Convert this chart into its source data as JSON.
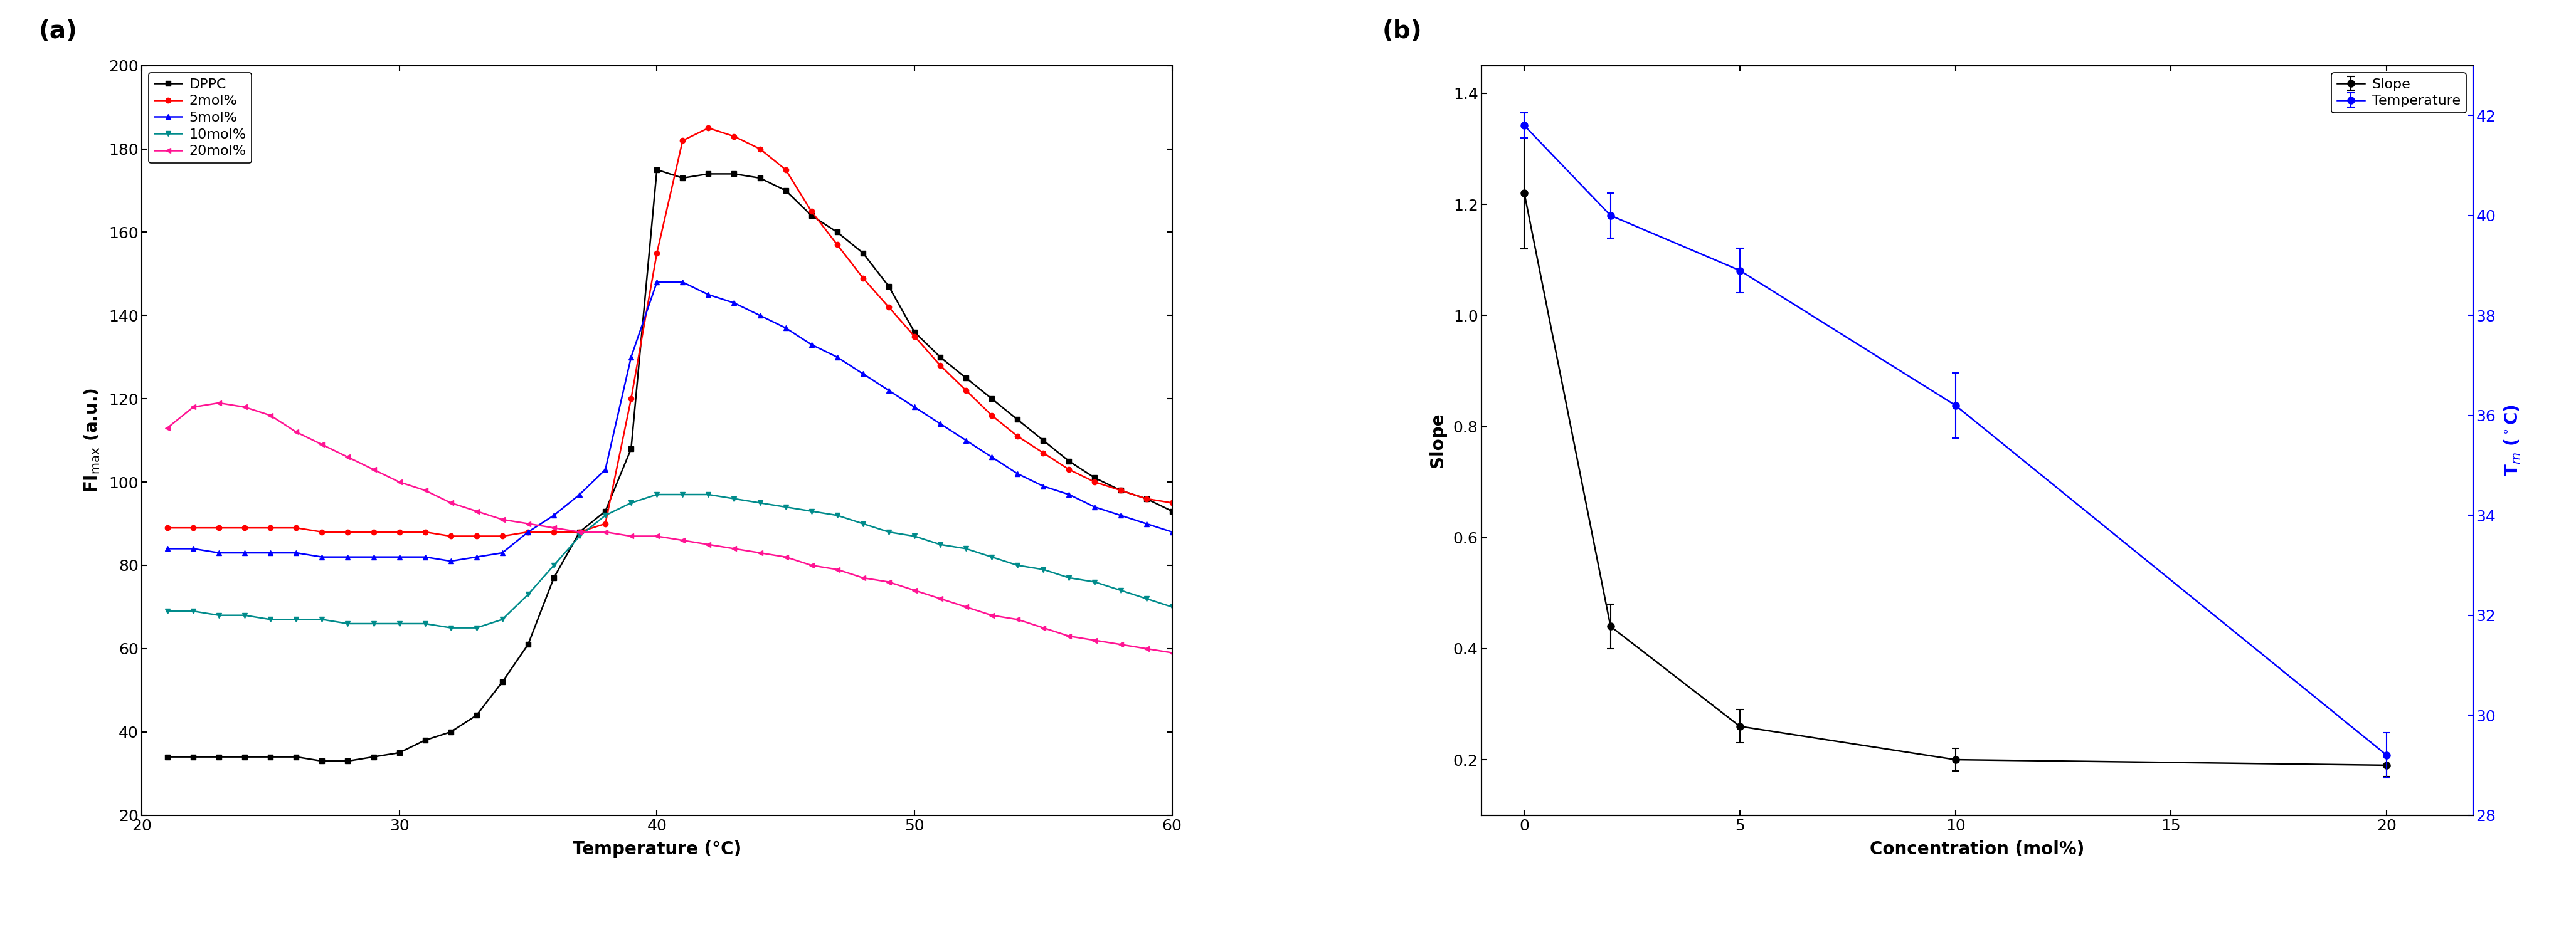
{
  "panel_a": {
    "xlabel": "Temperature (°C)",
    "ylabel": "FI$_{max}$ (a.u.)",
    "xlim": [
      20,
      60
    ],
    "ylim": [
      20,
      200
    ],
    "yticks": [
      20,
      40,
      60,
      80,
      100,
      120,
      140,
      160,
      180,
      200
    ],
    "xticks": [
      20,
      30,
      40,
      50,
      60
    ],
    "series": {
      "DPPC": {
        "color": "#000000",
        "marker": "s",
        "x": [
          21,
          22,
          23,
          24,
          25,
          26,
          27,
          28,
          29,
          30,
          31,
          32,
          33,
          34,
          35,
          36,
          37,
          38,
          39,
          40,
          41,
          42,
          43,
          44,
          45,
          46,
          47,
          48,
          49,
          50,
          51,
          52,
          53,
          54,
          55,
          56,
          57,
          58,
          59,
          60
        ],
        "y": [
          34,
          34,
          34,
          34,
          34,
          34,
          33,
          33,
          34,
          35,
          38,
          40,
          44,
          52,
          61,
          77,
          88,
          93,
          108,
          175,
          173,
          174,
          174,
          173,
          170,
          164,
          160,
          155,
          147,
          136,
          130,
          125,
          120,
          115,
          110,
          105,
          101,
          98,
          96,
          93
        ]
      },
      "2mol%": {
        "color": "#ff0000",
        "marker": "o",
        "x": [
          21,
          22,
          23,
          24,
          25,
          26,
          27,
          28,
          29,
          30,
          31,
          32,
          33,
          34,
          35,
          36,
          37,
          38,
          39,
          40,
          41,
          42,
          43,
          44,
          45,
          46,
          47,
          48,
          49,
          50,
          51,
          52,
          53,
          54,
          55,
          56,
          57,
          58,
          59,
          60
        ],
        "y": [
          89,
          89,
          89,
          89,
          89,
          89,
          88,
          88,
          88,
          88,
          88,
          87,
          87,
          87,
          88,
          88,
          88,
          90,
          120,
          155,
          182,
          185,
          183,
          180,
          175,
          165,
          157,
          149,
          142,
          135,
          128,
          122,
          116,
          111,
          107,
          103,
          100,
          98,
          96,
          95
        ]
      },
      "5mol%": {
        "color": "#0000ff",
        "marker": "^",
        "x": [
          21,
          22,
          23,
          24,
          25,
          26,
          27,
          28,
          29,
          30,
          31,
          32,
          33,
          34,
          35,
          36,
          37,
          38,
          39,
          40,
          41,
          42,
          43,
          44,
          45,
          46,
          47,
          48,
          49,
          50,
          51,
          52,
          53,
          54,
          55,
          56,
          57,
          58,
          59,
          60
        ],
        "y": [
          84,
          84,
          83,
          83,
          83,
          83,
          82,
          82,
          82,
          82,
          82,
          81,
          82,
          83,
          88,
          92,
          97,
          103,
          130,
          148,
          148,
          145,
          143,
          140,
          137,
          133,
          130,
          126,
          122,
          118,
          114,
          110,
          106,
          102,
          99,
          97,
          94,
          92,
          90,
          88
        ]
      },
      "10mol%": {
        "color": "#008B8B",
        "marker": "v",
        "x": [
          21,
          22,
          23,
          24,
          25,
          26,
          27,
          28,
          29,
          30,
          31,
          32,
          33,
          34,
          35,
          36,
          37,
          38,
          39,
          40,
          41,
          42,
          43,
          44,
          45,
          46,
          47,
          48,
          49,
          50,
          51,
          52,
          53,
          54,
          55,
          56,
          57,
          58,
          59,
          60
        ],
        "y": [
          69,
          69,
          68,
          68,
          67,
          67,
          67,
          66,
          66,
          66,
          66,
          65,
          65,
          67,
          73,
          80,
          87,
          92,
          95,
          97,
          97,
          97,
          96,
          95,
          94,
          93,
          92,
          90,
          88,
          87,
          85,
          84,
          82,
          80,
          79,
          77,
          76,
          74,
          72,
          70
        ]
      },
      "20mol%": {
        "color": "#FF1493",
        "marker": "<",
        "x": [
          21,
          22,
          23,
          24,
          25,
          26,
          27,
          28,
          29,
          30,
          31,
          32,
          33,
          34,
          35,
          36,
          37,
          38,
          39,
          40,
          41,
          42,
          43,
          44,
          45,
          46,
          47,
          48,
          49,
          50,
          51,
          52,
          53,
          54,
          55,
          56,
          57,
          58,
          59,
          60
        ],
        "y": [
          113,
          118,
          119,
          118,
          116,
          112,
          109,
          106,
          103,
          100,
          98,
          95,
          93,
          91,
          90,
          89,
          88,
          88,
          87,
          87,
          86,
          85,
          84,
          83,
          82,
          80,
          79,
          77,
          76,
          74,
          72,
          70,
          68,
          67,
          65,
          63,
          62,
          61,
          60,
          59
        ]
      }
    },
    "legend_order": [
      "DPPC",
      "2mol%",
      "5mol%",
      "10mol%",
      "20mol%"
    ]
  },
  "panel_b": {
    "xlabel": "Concentration (mol%)",
    "ylabel_left": "Slope",
    "ylabel_right": "T$_m$ (°C)",
    "xlim": [
      -1,
      22
    ],
    "ylim_left": [
      0.1,
      1.45
    ],
    "ylim_right": [
      28,
      43
    ],
    "xticks": [
      0,
      5,
      10,
      15,
      20
    ],
    "yticks_left": [
      0.2,
      0.4,
      0.6,
      0.8,
      1.0,
      1.2,
      1.4
    ],
    "yticks_right": [
      28,
      30,
      32,
      34,
      36,
      38,
      40,
      42
    ],
    "slope": {
      "color": "#000000",
      "marker": "o",
      "markersize": 8,
      "x": [
        0,
        2,
        5,
        10,
        20
      ],
      "y": [
        1.22,
        0.44,
        0.26,
        0.2,
        0.19
      ],
      "yerr": [
        0.1,
        0.04,
        0.03,
        0.02,
        0.02
      ]
    },
    "temperature": {
      "color": "#0000ff",
      "marker": "o",
      "markersize": 8,
      "x": [
        0,
        2,
        5,
        10,
        20
      ],
      "y": [
        41.8,
        40.0,
        38.9,
        36.2,
        29.2
      ],
      "yerr": [
        0.25,
        0.45,
        0.45,
        0.65,
        0.45
      ]
    }
  }
}
